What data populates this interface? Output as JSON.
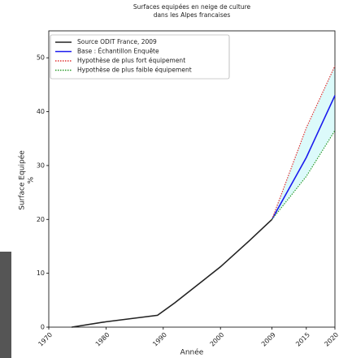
{
  "chart_data": {
    "type": "line",
    "title": [
      "Surfaces equipées en neige de culture",
      "dans les Alpes francaises"
    ],
    "xlabel": "Année",
    "ylabel": [
      "Surface Equipée",
      "%"
    ],
    "xlim": [
      1970,
      2020
    ],
    "xticks": [
      1970,
      1980,
      1990,
      2000,
      2009,
      2015,
      2020
    ],
    "ylim": [
      0,
      55
    ],
    "yticks": [
      0,
      10,
      20,
      30,
      40,
      50
    ],
    "legend": "upper left",
    "band_color": "#dcfafa",
    "series": [
      {
        "name": "Source ODIT France, 2009",
        "color": "#222222",
        "linestyle": "solid",
        "x": [
          1974,
          1980,
          1989,
          1992,
          2000,
          2005,
          2009
        ],
        "values": [
          0,
          1,
          2.2,
          4.5,
          11.2,
          16,
          20
        ]
      },
      {
        "name": "Base : Échantillon Enquête",
        "color": "#1a1aee",
        "linestyle": "solid",
        "x": [
          2009,
          2015,
          2020
        ],
        "values": [
          20,
          31.5,
          43
        ]
      },
      {
        "name": "Hypothèse de plus fort équipement",
        "color": "#e03030",
        "linestyle": "dotted",
        "x": [
          2009,
          2015,
          2020
        ],
        "values": [
          20,
          37,
          48.5
        ]
      },
      {
        "name": "Hypothèse de plus faible équipement",
        "color": "#2a9a2a",
        "linestyle": "dotted",
        "x": [
          2009,
          2015,
          2020
        ],
        "values": [
          20,
          28,
          36.5
        ]
      }
    ]
  }
}
